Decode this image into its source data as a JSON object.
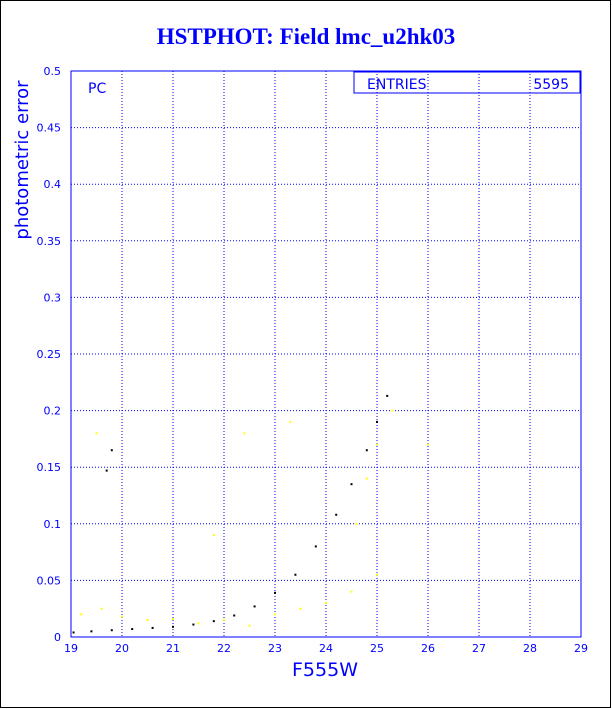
{
  "title": "HSTPHOT: Field lmc_u2hk03",
  "panel_label": "PC",
  "stats_box": {
    "label": "ENTRIES",
    "value": "5595"
  },
  "colors": {
    "axis": "#0000ff",
    "grid": "#0000ff",
    "series_primary": "#000000",
    "series_secondary": "#ffff00"
  },
  "chart_data": {
    "type": "scatter",
    "title": "HSTPHOT: Field lmc_u2hk03",
    "xlabel": "F555W",
    "ylabel": "photometric error",
    "xlim": [
      19,
      29
    ],
    "ylim": [
      0,
      0.5
    ],
    "xticks": [
      "19",
      "20",
      "21",
      "22",
      "23",
      "24",
      "25",
      "26",
      "27",
      "28",
      "29"
    ],
    "yticks": [
      "0",
      "0.05",
      "0.1",
      "0.15",
      "0.2",
      "0.25",
      "0.3",
      "0.35",
      "0.4",
      "0.45",
      "0.5"
    ],
    "grid": true,
    "series": [
      {
        "color": "black",
        "points": [
          [
            19.05,
            0.004
          ],
          [
            19.4,
            0.005
          ],
          [
            19.8,
            0.006
          ],
          [
            20.2,
            0.007
          ],
          [
            20.6,
            0.008
          ],
          [
            21.0,
            0.009
          ],
          [
            21.4,
            0.011
          ],
          [
            21.8,
            0.014
          ],
          [
            22.2,
            0.019
          ],
          [
            22.6,
            0.027
          ],
          [
            23.0,
            0.039
          ],
          [
            23.4,
            0.055
          ],
          [
            23.8,
            0.08
          ],
          [
            24.2,
            0.108
          ],
          [
            24.5,
            0.135
          ],
          [
            24.8,
            0.165
          ],
          [
            25.0,
            0.19
          ],
          [
            25.2,
            0.213
          ],
          [
            19.7,
            0.147
          ],
          [
            19.8,
            0.165
          ]
        ]
      },
      {
        "color": "yellow",
        "points": [
          [
            19.2,
            0.02
          ],
          [
            19.6,
            0.025
          ],
          [
            20.0,
            0.018
          ],
          [
            20.5,
            0.015
          ],
          [
            21.0,
            0.016
          ],
          [
            21.5,
            0.012
          ],
          [
            22.0,
            0.015
          ],
          [
            22.5,
            0.01
          ],
          [
            23.0,
            0.02
          ],
          [
            23.5,
            0.025
          ],
          [
            24.0,
            0.03
          ],
          [
            24.5,
            0.04
          ],
          [
            25.0,
            0.055
          ],
          [
            24.6,
            0.1
          ],
          [
            24.8,
            0.14
          ],
          [
            25.0,
            0.17
          ],
          [
            25.3,
            0.2
          ],
          [
            26.0,
            0.17
          ],
          [
            23.3,
            0.19
          ],
          [
            22.4,
            0.18
          ],
          [
            19.5,
            0.18
          ],
          [
            21.8,
            0.09
          ]
        ]
      }
    ]
  }
}
